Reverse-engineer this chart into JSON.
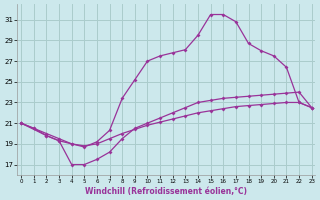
{
  "xlabel": "Windchill (Refroidissement éolien,°C)",
  "bg_color": "#cce8ec",
  "grid_color": "#aacccc",
  "line_color": "#993399",
  "x_ticks": [
    0,
    1,
    2,
    3,
    4,
    5,
    6,
    7,
    8,
    9,
    10,
    11,
    12,
    13,
    14,
    15,
    16,
    17,
    18,
    19,
    20,
    21,
    22,
    23
  ],
  "y_ticks": [
    17,
    19,
    21,
    23,
    25,
    27,
    29,
    31
  ],
  "xlim": [
    -0.3,
    23.3
  ],
  "ylim": [
    16.0,
    32.5
  ],
  "line1_x": [
    0,
    1,
    2,
    3,
    4,
    5,
    6,
    7,
    8,
    9,
    10,
    11,
    12,
    13,
    14,
    15,
    16,
    17,
    18,
    19,
    20,
    21,
    22,
    23
  ],
  "line1_y": [
    21.0,
    20.5,
    20.0,
    19.5,
    19.0,
    18.8,
    19.0,
    19.5,
    20.0,
    20.4,
    20.8,
    21.1,
    21.4,
    21.7,
    22.0,
    22.2,
    22.4,
    22.6,
    22.7,
    22.8,
    22.9,
    23.0,
    23.0,
    22.5
  ],
  "line2_x": [
    0,
    2,
    3,
    4,
    5,
    6,
    7,
    8,
    9,
    10,
    11,
    12,
    13,
    14,
    15,
    16,
    17,
    18,
    19,
    20,
    21,
    22,
    23
  ],
  "line2_y": [
    21.0,
    19.8,
    19.3,
    19.0,
    18.7,
    19.2,
    20.3,
    23.4,
    25.2,
    27.0,
    27.5,
    27.8,
    28.1,
    29.5,
    31.5,
    31.5,
    30.8,
    28.7,
    28.0,
    27.5,
    26.4,
    23.0,
    22.5
  ],
  "line3_x": [
    0,
    1,
    2,
    3,
    4,
    5,
    6,
    7,
    8,
    9,
    10,
    11,
    12,
    13,
    14,
    15,
    16,
    17,
    18,
    19,
    20,
    21,
    22,
    23
  ],
  "line3_y": [
    21.0,
    20.5,
    19.8,
    19.3,
    17.0,
    17.0,
    17.5,
    18.2,
    19.5,
    20.5,
    21.0,
    21.5,
    22.0,
    22.5,
    23.0,
    23.2,
    23.4,
    23.5,
    23.6,
    23.7,
    23.8,
    23.9,
    24.0,
    22.5
  ]
}
